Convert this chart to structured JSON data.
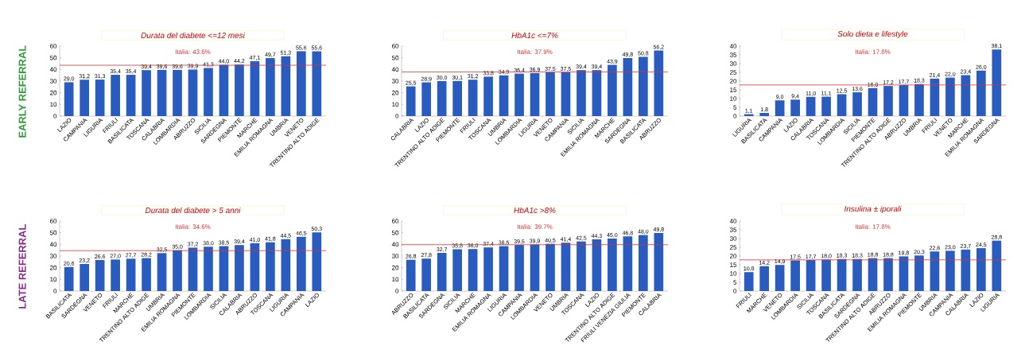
{
  "chart_data": [
    {
      "type": "bar",
      "title": "Durata del diabete <=12 mesi",
      "annotations": [
        "EARLY REFERRAL"
      ],
      "color": "#2a5cbf",
      "categories": [
        "LAZIO",
        "CAMPANIA",
        "LIGURIA",
        "FRIULI",
        "BASILICATA",
        "TOSCANA",
        "CALABRIA",
        "LOMBARDIA",
        "ABRUZZO",
        "SICILIA",
        "SARDEGNA",
        "PIEMONTE",
        "MARCHE",
        "EMILIA ROMAGNA",
        "UMBRIA",
        "VENETO",
        "TRENTINO ALTO ADIGE"
      ],
      "values": [
        29.0,
        31.2,
        31.3,
        35.4,
        35.4,
        39.4,
        39.6,
        39.6,
        39.9,
        41.3,
        44.0,
        44.2,
        47.1,
        49.7,
        51.3,
        55.6,
        55.6
      ],
      "value_labels": [
        "29,0",
        "31,2",
        "31,3",
        "35,4",
        "35,4",
        "39,4",
        "39,6",
        "39,6",
        "39,9",
        "41,3",
        "44,0",
        "44,2",
        "47,1",
        "49,7",
        "51,3",
        "55,6",
        "55,6"
      ],
      "ylim": [
        0,
        60
      ],
      "yticks": [
        0,
        10,
        20,
        30,
        40,
        50,
        60
      ],
      "ref_lines": [
        {
          "axis": "y",
          "value": 43.6,
          "label": "Italia: 43.6%",
          "color": "#e03030"
        }
      ]
    },
    {
      "type": "bar",
      "title": "HbA1c <=7%",
      "color": "#2a5cbf",
      "categories": [
        "CALABRIA",
        "LAZIO",
        "TRENTINO ALTO ADIGE",
        "PIEMONTE",
        "FRIULI",
        "TOSCANA",
        "UMBRIA",
        "LOMBARDIA",
        "LIGURIA",
        "VENETO",
        "CAMPANIA",
        "SICILIA",
        "EMILIA ROMAGNA",
        "MARCHE",
        "SARDEGNA",
        "BASILICATA",
        "ABRUZZO"
      ],
      "values": [
        25.5,
        28.9,
        30.0,
        30.1,
        31.2,
        33.8,
        34.9,
        36.4,
        36.9,
        37.5,
        37.5,
        39.4,
        39.4,
        43.9,
        49.8,
        50.8,
        56.2
      ],
      "value_labels": [
        "25,5",
        "28,9",
        "30,0",
        "30,1",
        "31,2",
        "33,8",
        "34,9",
        "36,4",
        "36,9",
        "37,5",
        "37,5",
        "39,4",
        "39,4",
        "43,9",
        "49,8",
        "50,8",
        "56,2"
      ],
      "ylim": [
        0,
        60
      ],
      "yticks": [
        0,
        10,
        20,
        30,
        40,
        50,
        60
      ],
      "ref_lines": [
        {
          "axis": "y",
          "value": 37.9,
          "label": "Italia: 37.9%",
          "color": "#e03030"
        }
      ]
    },
    {
      "type": "bar",
      "title": "Solo dieta e lifestyle",
      "color": "#2a5cbf",
      "categories": [
        "LIGURIA",
        "BASILICATA",
        "CAMPANIA",
        "LAZIO",
        "CALABRIA",
        "TOSCANA",
        "LOMBARDIA",
        "SICILIA",
        "PIEMONTE",
        "TRENTINO ALTO ADIGE",
        "ABRUZZO",
        "UMBRIA",
        "FRIULI",
        "VENETO",
        "MARCHE",
        "EMILIA ROMAGNA",
        "SARDEGNA"
      ],
      "values": [
        1.1,
        1.8,
        9.0,
        9.4,
        11.0,
        11.1,
        12.5,
        13.6,
        16.0,
        17.2,
        17.7,
        18.3,
        21.4,
        22.0,
        23.4,
        26.0,
        38.1
      ],
      "value_labels": [
        "1,1",
        "1,8",
        "9,0",
        "9,4",
        "11,0",
        "11,1",
        "12,5",
        "13,6",
        "16,0",
        "17,2",
        "17,7",
        "18,3",
        "21,4",
        "22,0",
        "23,4",
        "26,0",
        "38,1"
      ],
      "ylim": [
        0,
        40
      ],
      "yticks": [
        0,
        5,
        10,
        15,
        20,
        25,
        30,
        35,
        40
      ],
      "ref_lines": [
        {
          "axis": "y",
          "value": 17.8,
          "label": "Italia: 17.8%",
          "color": "#e03030"
        }
      ]
    },
    {
      "type": "bar",
      "title": "Durata del diabete > 5 anni",
      "annotations": [
        "LATE REFERRAL"
      ],
      "color": "#2a5cbf",
      "categories": [
        "BASILICATA",
        "SARDEGNA",
        "VENETO",
        "FRIULI",
        "MARCHE",
        "TRENTINO ALTO ADIGE",
        "UMBRIA",
        "EMILIA ROMAGNA",
        "PIEMONTE",
        "LOMBARDIA",
        "SICILIA",
        "CALABRIA",
        "ABRUZZO",
        "TOSCANA",
        "LIGURIA",
        "CAMPANIA",
        "LAZIO"
      ],
      "values": [
        20.6,
        23.2,
        26.6,
        27.0,
        27.7,
        28.2,
        32.5,
        35.0,
        37.2,
        38.0,
        38.5,
        39.4,
        41.0,
        41.8,
        44.5,
        46.5,
        50.3
      ],
      "value_labels": [
        "20,6",
        "23,2",
        "26,6",
        "27,0",
        "27,7",
        "28,2",
        "32,5",
        "35,0",
        "37,2",
        "38,0",
        "38,5",
        "39,4",
        "41,0",
        "41,8",
        "44,5",
        "46,5",
        "50,3"
      ],
      "ylim": [
        0,
        60
      ],
      "yticks": [
        0,
        10,
        20,
        30,
        40,
        50,
        60
      ],
      "ref_lines": [
        {
          "axis": "y",
          "value": 34.6,
          "label": "Italia: 34.6%",
          "color": "#e03030"
        }
      ]
    },
    {
      "type": "bar",
      "title": "HbA1c >8%",
      "color": "#2a5cbf",
      "categories": [
        "ABRUZZO",
        "BASILICATA",
        "SARDEGNA",
        "SICILIA",
        "MARCHE",
        "EMILIA ROMAGNA",
        "LIGURIA",
        "CAMPANIA",
        "LOMBARDIA",
        "VENETO",
        "UMBRIA",
        "TOSCANA",
        "LAZIO",
        "TRENTINO ALTO ADIGE",
        "FRIULI VENEZIA GIULIA",
        "PIEMONTE",
        "CALABRIA"
      ],
      "values": [
        26.8,
        27.8,
        32.7,
        35.8,
        36.0,
        37.4,
        38.5,
        39.5,
        39.9,
        40.5,
        41.4,
        42.5,
        44.3,
        45.0,
        46.8,
        48.0,
        49.8
      ],
      "value_labels": [
        "26,8",
        "27,8",
        "32,7",
        "35,8",
        "36,0",
        "37,4",
        "38,5",
        "39,5",
        "39,9",
        "40,5",
        "41,4",
        "42,5",
        "44,3",
        "45,0",
        "46,8",
        "48,0",
        "49,8"
      ],
      "ylim": [
        0,
        60
      ],
      "yticks": [
        0,
        10,
        20,
        30,
        40,
        50,
        60
      ],
      "ref_lines": [
        {
          "axis": "y",
          "value": 39.7,
          "label": "Italia: 39.7%",
          "color": "#e03030"
        }
      ]
    },
    {
      "type": "bar",
      "title": "Insulina ± iporali",
      "color": "#2a5cbf",
      "categories": [
        "FRIULI",
        "MARCHE",
        "VENETO",
        "LOMBARDIA",
        "SICILIA",
        "TOSCANA",
        "BASILICATA",
        "SARDEGNA",
        "TRENTINO ALTO ADIGE",
        "ABRUZZO",
        "EMILIA ROMAGNA",
        "PIEMONTE",
        "UMBRIA",
        "CAMPANIA",
        "CALABRIA",
        "LAZIO",
        "LIGURIA"
      ],
      "values": [
        10.8,
        14.2,
        14.9,
        17.5,
        17.7,
        18.0,
        18.3,
        18.3,
        18.8,
        18.8,
        19.8,
        20.3,
        22.6,
        23.0,
        23.7,
        24.5,
        28.8
      ],
      "value_labels": [
        "10,8",
        "14,2",
        "14,9",
        "17,5",
        "17,7",
        "18,0",
        "18,3",
        "18,3",
        "18,8",
        "18,8",
        "19,8",
        "20,3",
        "22,6",
        "23,0",
        "23,7",
        "24,5",
        "28,8"
      ],
      "ylim": [
        0,
        40
      ],
      "yticks": [
        0,
        5,
        10,
        15,
        20,
        25,
        30,
        35,
        40
      ],
      "ref_lines": [
        {
          "axis": "y",
          "value": 17.8,
          "label": "Italia: 17.8%",
          "color": "#e03030"
        }
      ]
    }
  ]
}
